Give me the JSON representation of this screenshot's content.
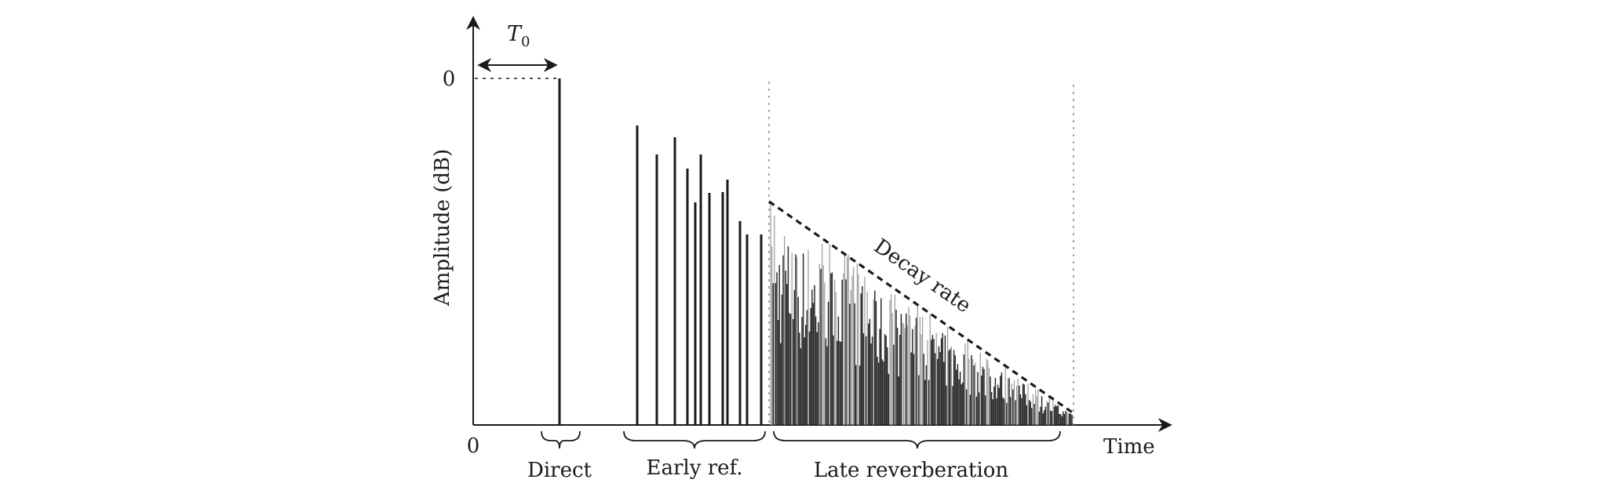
{
  "diagram": {
    "y_axis_label": "Amplitude (dB)",
    "x_axis_label": "Time",
    "y_tick_zero": "0",
    "x_tick_zero": "0",
    "t0_label": {
      "main": "T",
      "sub": "0"
    },
    "decay_label": "Decay rate",
    "regions": {
      "direct": "Direct",
      "early": "Early ref.",
      "late": "Late reverberation"
    }
  },
  "colors": {
    "ink": "#1a1a1a",
    "late_dark": "#2b2b2b",
    "late_light": "#9a9a9a",
    "guide": "#8c8c8c"
  }
}
